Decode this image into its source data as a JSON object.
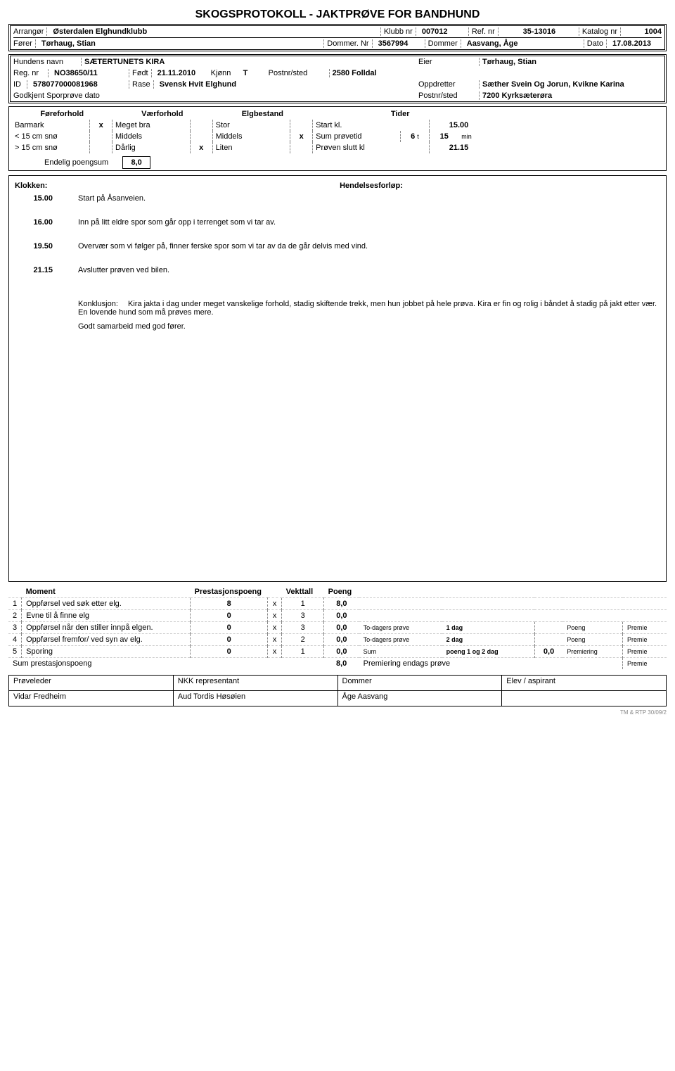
{
  "title": "SKOGSPROTOKOLL - JAKTPRØVE FOR BANDHUND",
  "header": {
    "arrangor_lbl": "Arrangør",
    "arrangor": "Østerdalen Elghundklubb",
    "klubbnr_lbl": "Klubb nr",
    "klubbnr": "007012",
    "refnr_lbl": "Ref. nr",
    "refnr": "35-13016",
    "katalognr_lbl": "Katalog nr",
    "katalognr": "1004",
    "forer_lbl": "Fører",
    "forer": "Tørhaug, Stian",
    "dommernr_lbl": "Dommer. Nr",
    "dommernr": "3567994",
    "dommer_lbl": "Dommer",
    "dommer": "Aasvang, Åge",
    "dato_lbl": "Dato",
    "dato": "17.08.2013"
  },
  "dog": {
    "hundensnavn_lbl": "Hundens navn",
    "hundensnavn": "SÆTERTUNETS KIRA",
    "eier_lbl": "Eier",
    "eier": "Tørhaug, Stian",
    "regnr_lbl": "Reg. nr",
    "regnr": "NO38650/11",
    "fodt_lbl": "Født",
    "fodt": "21.11.2010",
    "kjonn_lbl": "Kjønn",
    "kjonn": "T",
    "postnrsted_lbl": "Postnr/sted",
    "postnrsted1": "2580 Folldal",
    "id_lbl": "ID",
    "id": "578077000081968",
    "rase_lbl": "Rase",
    "rase": "Svensk Hvit Elghund",
    "oppdretter_lbl": "Oppdretter",
    "oppdretter": "Sæther Svein Og Jorun, Kvikne Karina",
    "godkjent_lbl": "Godkjent Sporprøve dato",
    "postnrsted2_lbl": "Postnr/sted",
    "postnrsted2": "7200 Kyrksæterøra"
  },
  "conditions": {
    "headers": [
      "Føreforhold",
      "Værforhold",
      "Elgbestand",
      "Tider"
    ],
    "rows": [
      {
        "c1": "Barmark",
        "m1": "x",
        "c2": "Meget bra",
        "m2": "",
        "c3": "Stor",
        "m3": "",
        "c4": "Start kl.",
        "c5": "",
        "c6": "15.00"
      },
      {
        "c1": "< 15 cm snø",
        "m1": "",
        "c2": "Middels",
        "m2": "",
        "c3": "Middels",
        "m3": "x",
        "c4": "Sum prøvetid",
        "c5": "6",
        "c5u": "t",
        "c6": "15",
        "c6u": "min"
      },
      {
        "c1": "> 15 cm snø",
        "m1": "",
        "c2": "Dårlig",
        "m2": "x",
        "c3": "Liten",
        "m3": "",
        "c4": "Prøven slutt kl",
        "c5": "",
        "c6": "21.15"
      }
    ],
    "endelig_lbl": "Endelig poengsum",
    "endelig": "8,0"
  },
  "klokken": {
    "klokken_lbl": "Klokken:",
    "hendelses_lbl": "Hendelsesforløp:",
    "entries": [
      {
        "time": "15.00",
        "text": "Start på Åsanveien."
      },
      {
        "time": "16.00",
        "text": "Inn på litt eldre spor som går opp i terrenget som vi tar av."
      },
      {
        "time": "19.50",
        "text": "Overvær som vi følger på, finner ferske spor som vi tar av da de går delvis med vind."
      },
      {
        "time": "21.15",
        "text": "Avslutter prøven ved bilen."
      }
    ],
    "konklusjon_lbl": "Konklusjon:",
    "konklusjon": "Kira jakta i dag under meget vanskelige forhold, stadig skiftende trekk, men hun jobbet på hele prøva. Kira er fin og rolig i båndet å stadig på jakt etter vær. En lovende hund som må prøves mere.",
    "konklusjon2": "Godt samarbeid med god fører."
  },
  "moments": {
    "headers": {
      "moment": "Moment",
      "prest": "Prestasjonspoeng",
      "vekt": "Vekttall",
      "poeng": "Poeng"
    },
    "rows": [
      {
        "n": "1",
        "t": "Oppførsel ved søk etter elg.",
        "p": "8",
        "x": "x",
        "v": "1",
        "po": "8,0"
      },
      {
        "n": "2",
        "t": "Evne til å finne elg",
        "p": "0",
        "x": "x",
        "v": "3",
        "po": "0,0"
      },
      {
        "n": "3",
        "t": "Oppførsel når den stiller innpå elgen.",
        "p": "0",
        "x": "x",
        "v": "3",
        "po": "0,0",
        "extra": "To-dagers prøve",
        "ed": "1 dag",
        "elp": "Poeng",
        "elpr": "Premie"
      },
      {
        "n": "4",
        "t": "Oppførsel fremfor/ ved syn av elg.",
        "p": "0",
        "x": "x",
        "v": "2",
        "po": "0,0",
        "extra": "To-dagers prøve",
        "ed": "2 dag",
        "elp": "Poeng",
        "elpr": "Premie"
      },
      {
        "n": "5",
        "t": "Sporing",
        "p": "0",
        "x": "x",
        "v": "1",
        "po": "0,0",
        "extra": "Sum",
        "ed": "poeng 1 og 2 dag",
        "ev": "0,0",
        "elp": "Premiering",
        "elpr": "Premie"
      }
    ],
    "sum_lbl": "Sum prestasjonspoeng",
    "sum": "8,0",
    "prem_lbl": "Premiering endags prøve",
    "prem_pr": "Premie"
  },
  "sign": {
    "h1": "Prøveleder",
    "h2": "NKK representant",
    "h3": "Dommer",
    "h4": "Elev / aspirant",
    "v1": "Vidar Fredheim",
    "v2": "Aud Tordis Høsøien",
    "v3": "Åge Aasvang",
    "v4": ""
  },
  "footer": "TM & RTP 30/09/2"
}
